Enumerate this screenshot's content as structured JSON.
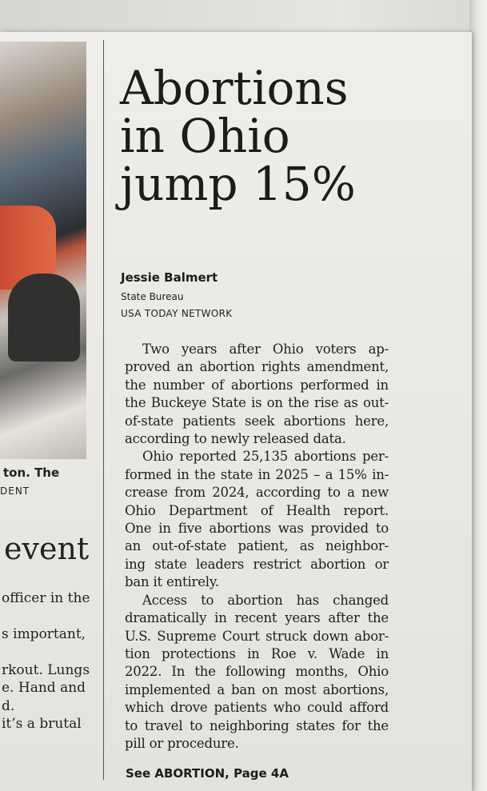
{
  "left_column": {
    "caption_tail": "ton. The",
    "credit_tail": "DENT",
    "headline_tail": "event",
    "lines": [
      "officer in the",
      "s important,",
      "rkout. Lungs",
      "e. Hand and",
      "d.",
      "it’s a brutal"
    ]
  },
  "article": {
    "headline_lines": [
      "Abortions",
      "in Ohio",
      "jump 15%"
    ],
    "author": "Jessie Balmert",
    "bureau": "State Bureau",
    "network": "USA TODAY NETWORK",
    "paragraphs": [
      [
        "Two years after Ohio voters ap-",
        "proved an abortion rights amendment,",
        "the number of abortions performed in",
        "the Buckeye State is on the rise as out-",
        "of-state patients seek abortions here,",
        "according to newly released data."
      ],
      [
        "Ohio reported 25,135 abortions per-",
        "formed in the state in 2025 – a 15% in-",
        "crease from 2024, according to a new",
        "Ohio Department of Health report.",
        "One in five abortions was provided to",
        "an out-of-state patient, as neighbor-",
        "ing state leaders restrict abortion or",
        "ban it entirely."
      ],
      [
        "Access to abortion has changed",
        "dramatically in recent years after the",
        "U.S. Supreme Court struck down abor-",
        "tion protections in Roe v. Wade in",
        "2022. In the following months, Ohio",
        "implemented a ban on most abortions,",
        "which drove patients who could afford",
        "to travel to neighboring states for the",
        "pill or procedure."
      ]
    ],
    "jump_line": "See ABORTION, Page 4A"
  }
}
